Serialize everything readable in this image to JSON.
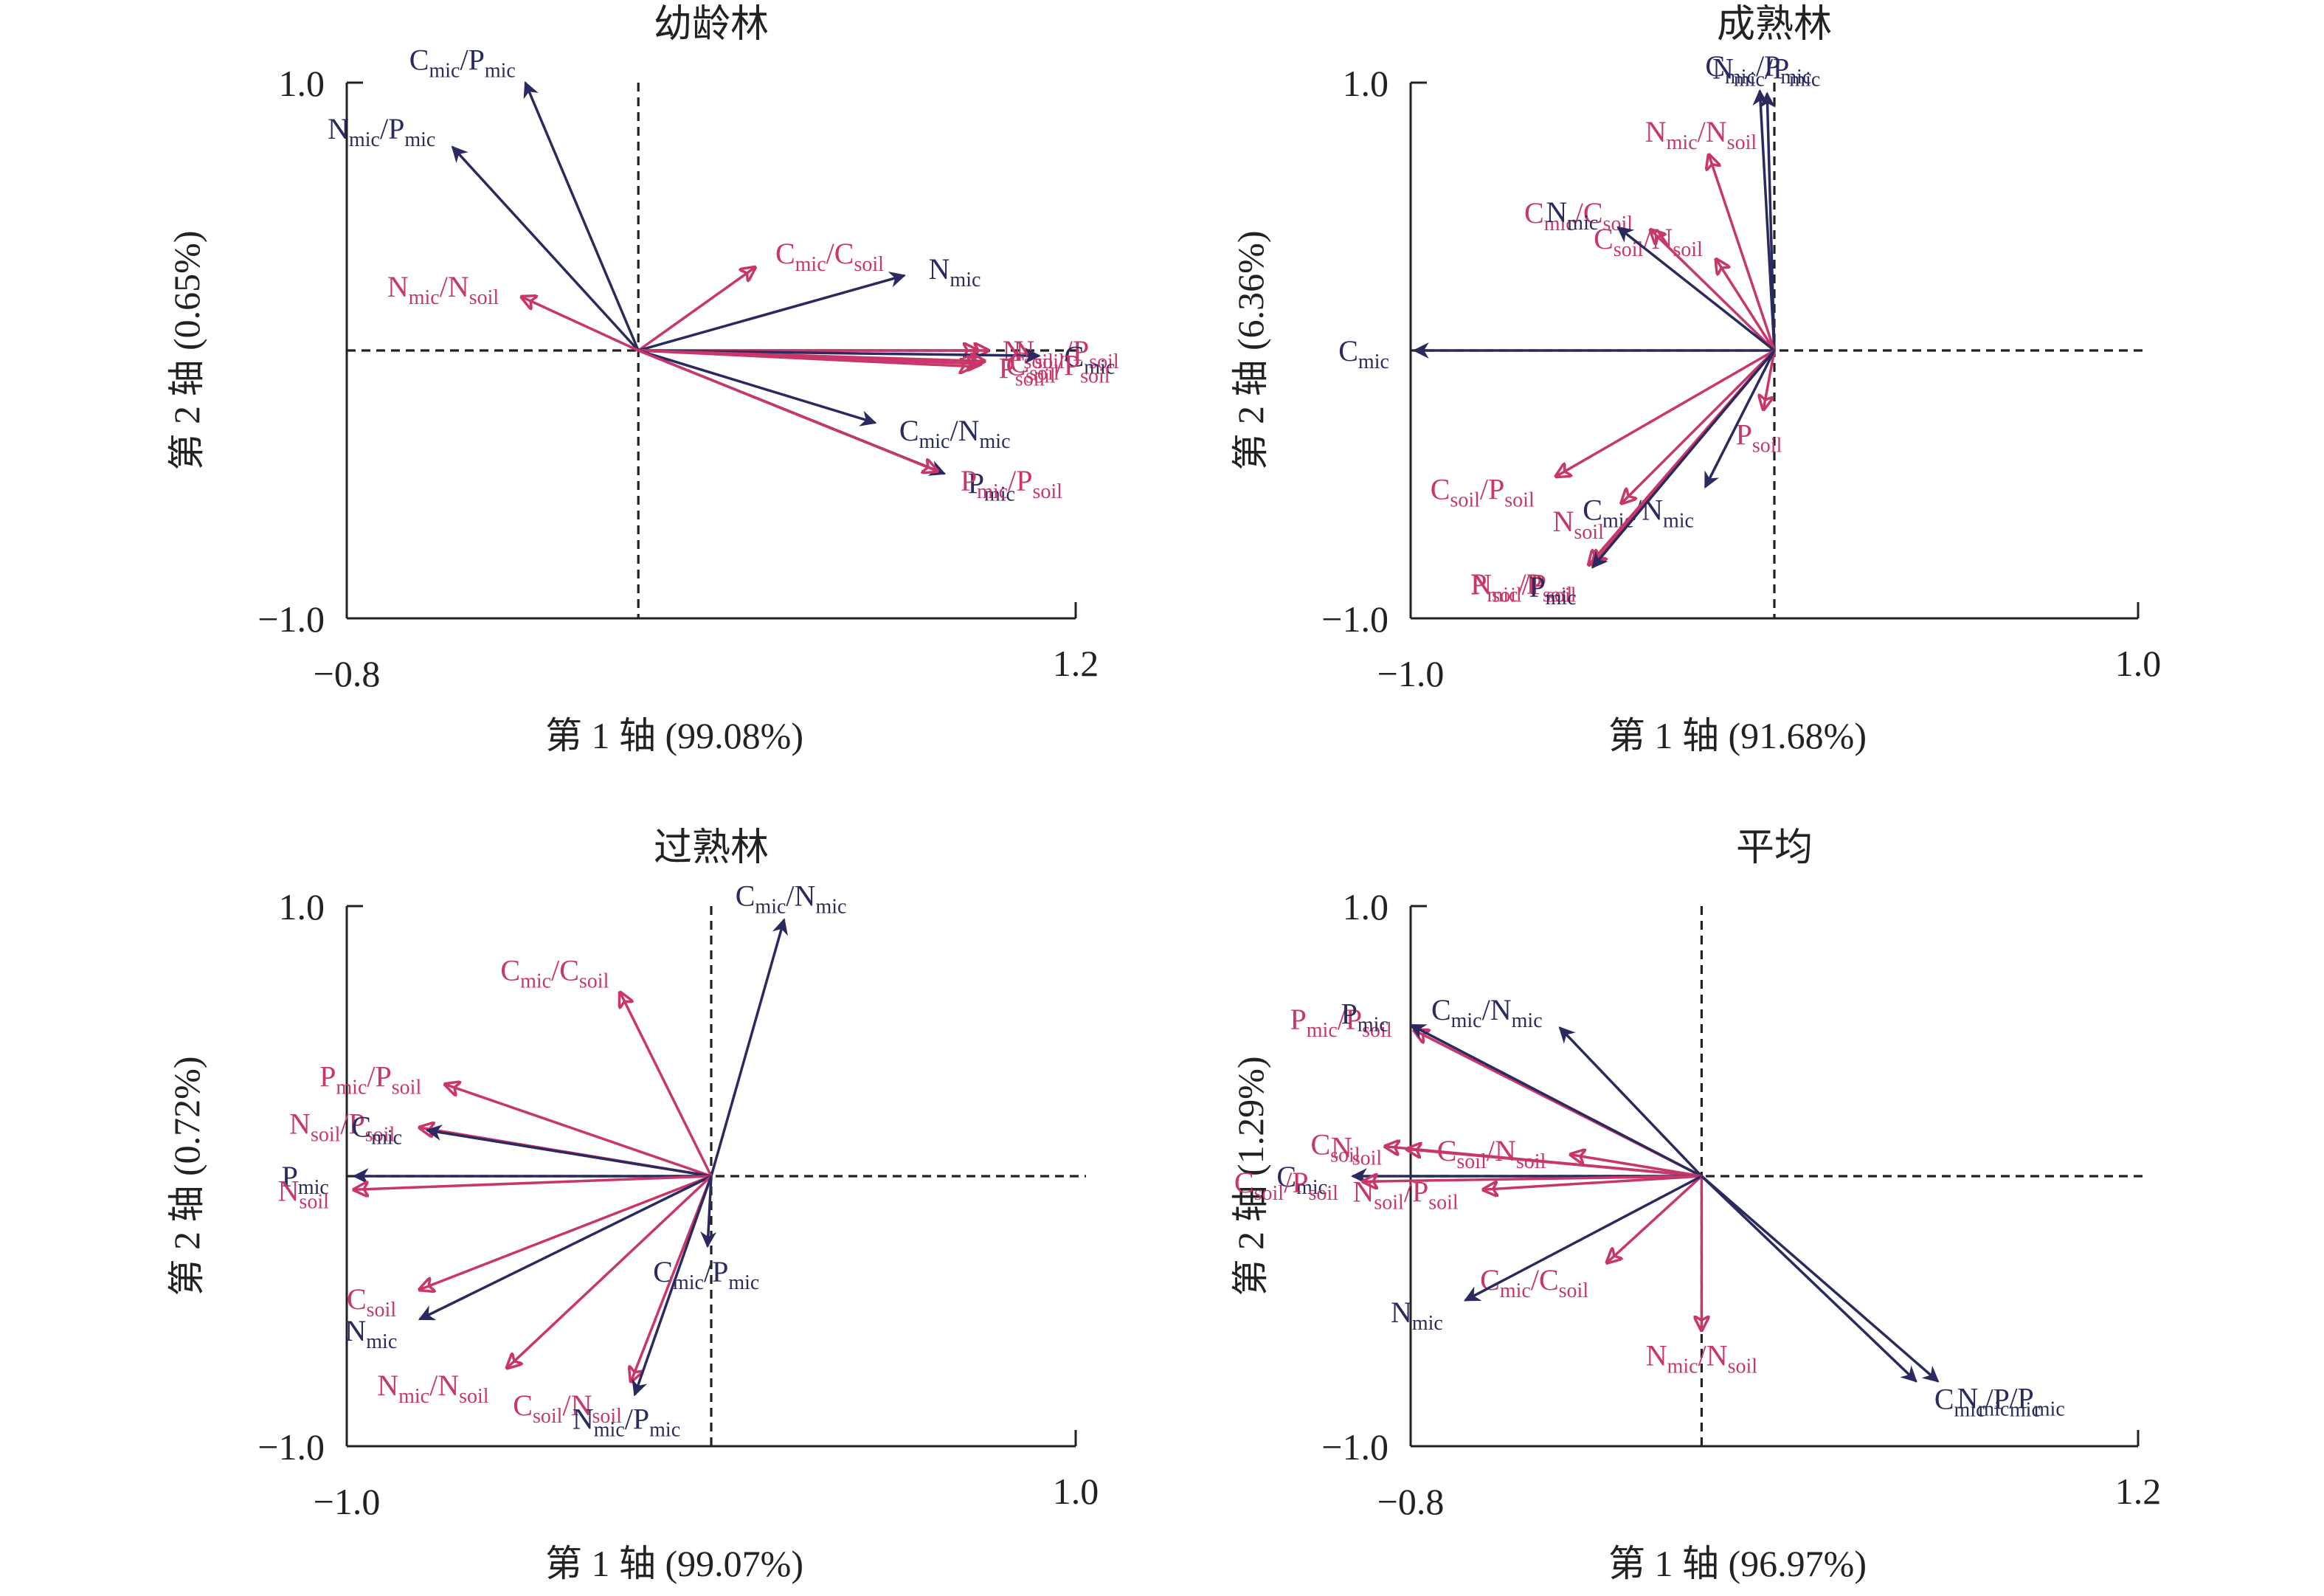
{
  "colors": {
    "soil": "#c8366a",
    "mic": "#2a2a5e",
    "axis": "#222222"
  },
  "chart_data": [
    {
      "type": "biplot",
      "title": "幼龄林",
      "xlabel": "第 1 轴 (99.08%)",
      "ylabel": "第 2 轴 (0.65%)",
      "xlim": [
        -0.8,
        1.2
      ],
      "ylim": [
        -1.0,
        1.0
      ],
      "xticks": [
        "−0.8",
        "1.2"
      ],
      "yticks": [
        "1.0",
        "−1.0"
      ],
      "vectors": [
        {
          "label": "C",
          "sub": "mic",
          "label2": "P",
          "sub2": "mic",
          "group": "mic",
          "x": -0.31,
          "y": 1.0
        },
        {
          "label": "N",
          "sub": "mic",
          "label2": "P",
          "sub2": "mic",
          "group": "mic",
          "x": -0.51,
          "y": 0.76
        },
        {
          "label": "N",
          "sub": "mic",
          "label2": "N",
          "sub2": "soil",
          "group": "soil",
          "x": -0.32,
          "y": 0.2
        },
        {
          "label": "C",
          "sub": "mic",
          "label2": "C",
          "sub2": "soil",
          "group": "soil",
          "x": 0.32,
          "y": 0.31
        },
        {
          "label": "N",
          "sub": "mic",
          "group": "mic",
          "x": 0.73,
          "y": 0.28
        },
        {
          "label": "N",
          "sub": "soil",
          "group": "soil",
          "x": 0.93,
          "y": 0.0
        },
        {
          "label": "N",
          "sub": "soil",
          "label2": "P",
          "sub2": "soil",
          "group": "soil",
          "x": 0.96,
          "y": 0.0
        },
        {
          "label": "C",
          "sub": "mic",
          "group": "mic",
          "x": 1.1,
          "y": -0.02
        },
        {
          "label": "C",
          "sub": "soil",
          "group": "soil",
          "x": 0.95,
          "y": -0.04
        },
        {
          "label": "C",
          "sub": "soil",
          "label2": "P",
          "sub2": "soil",
          "group": "soil",
          "x": 0.94,
          "y": -0.05
        },
        {
          "label": "P",
          "sub": "soil",
          "group": "soil",
          "x": 0.92,
          "y": -0.06
        },
        {
          "label": "C",
          "sub": "mic",
          "label2": "N",
          "sub2": "mic",
          "group": "mic",
          "x": 0.65,
          "y": -0.27
        },
        {
          "label": "P",
          "sub": "mic",
          "group": "mic",
          "x": 0.84,
          "y": -0.46
        },
        {
          "label": "P",
          "sub": "mic",
          "label2": "P",
          "sub2": "soil",
          "group": "soil",
          "x": 0.82,
          "y": -0.45
        }
      ]
    },
    {
      "type": "biplot",
      "title": "成熟林",
      "xlabel": "第 1 轴 (91.68%)",
      "ylabel": "第 2 轴 (6.36%)",
      "xlim": [
        -1.0,
        1.0
      ],
      "ylim": [
        -1.0,
        1.0
      ],
      "xticks": [
        "−1.0",
        "1.0"
      ],
      "yticks": [
        "1.0",
        "−1.0"
      ],
      "vectors": [
        {
          "label": "C",
          "sub": "mic",
          "label2": "P",
          "sub2": "mic",
          "group": "mic",
          "x": -0.04,
          "y": 0.97
        },
        {
          "label": "N",
          "sub": "mic",
          "label2": "P",
          "sub2": "mic",
          "group": "mic",
          "x": -0.02,
          "y": 0.96
        },
        {
          "label": "N",
          "sub": "mic",
          "label2": "N",
          "sub2": "soil",
          "group": "soil",
          "x": -0.18,
          "y": 0.73
        },
        {
          "label": "C",
          "sub": "mic",
          "label2": "C",
          "sub2": "soil",
          "group": "soil",
          "x": -0.34,
          "y": 0.45
        },
        {
          "label": "C",
          "sub": "soil",
          "label2": "N",
          "sub2": "soil",
          "group": "soil",
          "x": -0.16,
          "y": 0.34
        },
        {
          "label": "N",
          "sub": "mic",
          "group": "mic",
          "x": -0.43,
          "y": 0.46
        },
        {
          "label": "C",
          "sub": "mic",
          "group": "mic",
          "x": -0.99,
          "y": 0.0
        },
        {
          "label": "P",
          "sub": "soil",
          "group": "soil",
          "x": -0.03,
          "y": -0.22
        },
        {
          "label": "C",
          "sub": "mic",
          "label2": "N",
          "sub2": "mic",
          "group": "mic",
          "x": -0.19,
          "y": -0.51
        },
        {
          "label": "C",
          "sub": "soil",
          "label2": "P",
          "sub2": "soil",
          "group": "soil",
          "x": -0.6,
          "y": -0.47
        },
        {
          "label": "N",
          "sub": "soil",
          "group": "soil",
          "x": -0.42,
          "y": -0.57
        },
        {
          "label": "N",
          "sub": "soil",
          "label2": "P",
          "sub2": "soil",
          "group": "soil",
          "x": -0.5,
          "y": -0.8
        },
        {
          "label": "P",
          "sub": "mic",
          "label2": "P",
          "sub2": "soil",
          "group": "soil",
          "x": -0.51,
          "y": -0.8
        },
        {
          "label": "P",
          "sub": "mic",
          "group": "mic",
          "x": -0.5,
          "y": -0.81
        }
      ]
    },
    {
      "type": "biplot",
      "title": "过熟林",
      "xlabel": "第 1 轴 (99.07%)",
      "ylabel": "第 2 轴 (0.72%)",
      "xlim": [
        -1.0,
        1.0
      ],
      "ylim": [
        -1.0,
        1.0
      ],
      "xticks": [
        "−1.0",
        "1.0"
      ],
      "yticks": [
        "1.0",
        "−1.0"
      ],
      "vectors": [
        {
          "label": "C",
          "sub": "mic",
          "label2": "N",
          "sub2": "mic",
          "group": "mic",
          "x": 0.2,
          "y": 0.95
        },
        {
          "label": "C",
          "sub": "mic",
          "label2": "C",
          "sub2": "soil",
          "group": "soil",
          "x": -0.25,
          "y": 0.68
        },
        {
          "label": "P",
          "sub": "mic",
          "label2": "P",
          "sub2": "soil",
          "group": "soil",
          "x": -0.73,
          "y": 0.34
        },
        {
          "label": "N",
          "sub": "soil",
          "label2": "P",
          "sub2": "soil",
          "group": "soil",
          "x": -0.8,
          "y": 0.18
        },
        {
          "label": "C",
          "sub": "mic",
          "group": "mic",
          "x": -0.78,
          "y": 0.17
        },
        {
          "label": "P",
          "sub": "mic",
          "group": "mic",
          "x": -0.98,
          "y": 0.0
        },
        {
          "label": "N",
          "sub": "soil",
          "group": "soil",
          "x": -0.98,
          "y": -0.05
        },
        {
          "label": "C",
          "sub": "mic",
          "label2": "P",
          "sub2": "mic",
          "group": "mic",
          "x": -0.01,
          "y": -0.26
        },
        {
          "label": "C",
          "sub": "soil",
          "group": "soil",
          "x": -0.8,
          "y": -0.42
        },
        {
          "label": "N",
          "sub": "mic",
          "group": "mic",
          "x": -0.8,
          "y": -0.53
        },
        {
          "label": "N",
          "sub": "mic",
          "label2": "N",
          "sub2": "soil",
          "group": "soil",
          "x": -0.56,
          "y": -0.71
        },
        {
          "label": "C",
          "sub": "soil",
          "label2": "N",
          "sub2": "soil",
          "group": "soil",
          "x": -0.22,
          "y": -0.76
        },
        {
          "label": "N",
          "sub": "mic",
          "label2": "P",
          "sub2": "mic",
          "group": "mic",
          "x": -0.21,
          "y": -0.81
        }
      ]
    },
    {
      "type": "biplot",
      "title": "平均",
      "xlabel": "第 1 轴 (96.97%)",
      "ylabel": "第 2 轴 (1.29%)",
      "xlim": [
        -0.8,
        1.2
      ],
      "ylim": [
        -1.0,
        1.0
      ],
      "xticks": [
        "−0.8",
        "1.2"
      ],
      "yticks": [
        "1.0",
        "−1.0"
      ],
      "vectors": [
        {
          "label": "P",
          "sub": "mic",
          "label2": "P",
          "sub2": "soil",
          "group": "soil",
          "x": -0.79,
          "y": 0.54
        },
        {
          "label": "P",
          "sub": "mic",
          "group": "mic",
          "x": -0.8,
          "y": 0.56
        },
        {
          "label": "C",
          "sub": "mic",
          "label2": "N",
          "sub2": "mic",
          "group": "mic",
          "x": -0.39,
          "y": 0.55
        },
        {
          "label": "C",
          "sub": "soil",
          "group": "soil",
          "x": -0.87,
          "y": 0.11
        },
        {
          "label": "N",
          "sub": "soil",
          "group": "soil",
          "x": -0.81,
          "y": 0.1
        },
        {
          "label": "C",
          "sub": "soil",
          "label2": "N",
          "sub2": "soil",
          "group": "soil",
          "x": -0.36,
          "y": 0.08
        },
        {
          "label": "C",
          "sub": "mic",
          "group": "mic",
          "x": -0.96,
          "y": 0.0
        },
        {
          "label": "C",
          "sub": "soil",
          "label2": "P",
          "sub2": "soil",
          "group": "soil",
          "x": -0.93,
          "y": -0.02
        },
        {
          "label": "N",
          "sub": "soil",
          "label2": "P",
          "sub2": "soil",
          "group": "soil",
          "x": -0.6,
          "y": -0.05
        },
        {
          "label": "C",
          "sub": "mic",
          "label2": "C",
          "sub2": "soil",
          "group": "soil",
          "x": -0.26,
          "y": -0.32
        },
        {
          "label": "N",
          "sub": "mic",
          "group": "mic",
          "x": -0.65,
          "y": -0.46
        },
        {
          "label": "N",
          "sub": "mic",
          "label2": "N",
          "sub2": "soil",
          "group": "soil",
          "x": 0.0,
          "y": -0.57
        },
        {
          "label": "C",
          "sub": "mic",
          "label2": "P",
          "sub2": "mic",
          "group": "mic",
          "x": 0.59,
          "y": -0.76
        },
        {
          "label": "N",
          "sub": "mic",
          "label2": "P",
          "sub2": "mic",
          "group": "mic",
          "x": 0.65,
          "y": -0.76
        }
      ]
    }
  ]
}
